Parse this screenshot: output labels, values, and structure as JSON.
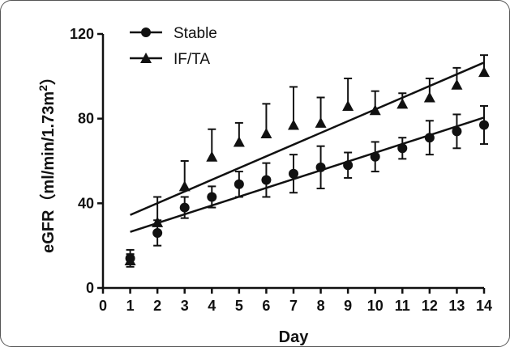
{
  "chart_data": {
    "type": "scatter",
    "xlabel": "Day",
    "ylabel": "eGFR (ml/min/1.73m²)",
    "ylabel_parts": [
      "eGFR",
      "（ml/min/1.73m",
      "2",
      "）"
    ],
    "xlim": [
      0,
      14
    ],
    "ylim": [
      0,
      120
    ],
    "x_ticks": [
      0,
      1,
      2,
      3,
      4,
      5,
      6,
      7,
      8,
      9,
      10,
      11,
      12,
      13,
      14
    ],
    "y_ticks": [
      0,
      40,
      80,
      120
    ],
    "grid": false,
    "legend_position": "top-left",
    "series": [
      {
        "name": "Stable",
        "marker": "circle",
        "error_bars": "both",
        "x": [
          1,
          2,
          3,
          4,
          5,
          6,
          7,
          8,
          9,
          10,
          11,
          12,
          13,
          14
        ],
        "y": [
          14,
          26,
          38,
          43,
          49,
          51,
          54,
          57,
          58,
          62,
          66,
          71,
          74,
          77
        ],
        "error": [
          4,
          6,
          5,
          5,
          6,
          8,
          9,
          10,
          6,
          7,
          5,
          8,
          8,
          9
        ],
        "trendline": [
          [
            1,
            26.5
          ],
          [
            14,
            80.5
          ]
        ]
      },
      {
        "name": "IF/TA",
        "marker": "triangle",
        "error_bars": "upper",
        "x": [
          1,
          2,
          3,
          4,
          5,
          6,
          7,
          8,
          9,
          10,
          11,
          12,
          13,
          14
        ],
        "y": [
          13,
          31,
          48,
          62,
          69,
          73,
          77,
          78,
          86,
          84,
          87,
          90,
          96,
          102
        ],
        "error": [
          3,
          12,
          12,
          13,
          9,
          14,
          18,
          12,
          13,
          9,
          5,
          9,
          8,
          8
        ],
        "trendline": [
          [
            1,
            34.5
          ],
          [
            14,
            106.5
          ]
        ]
      }
    ]
  }
}
